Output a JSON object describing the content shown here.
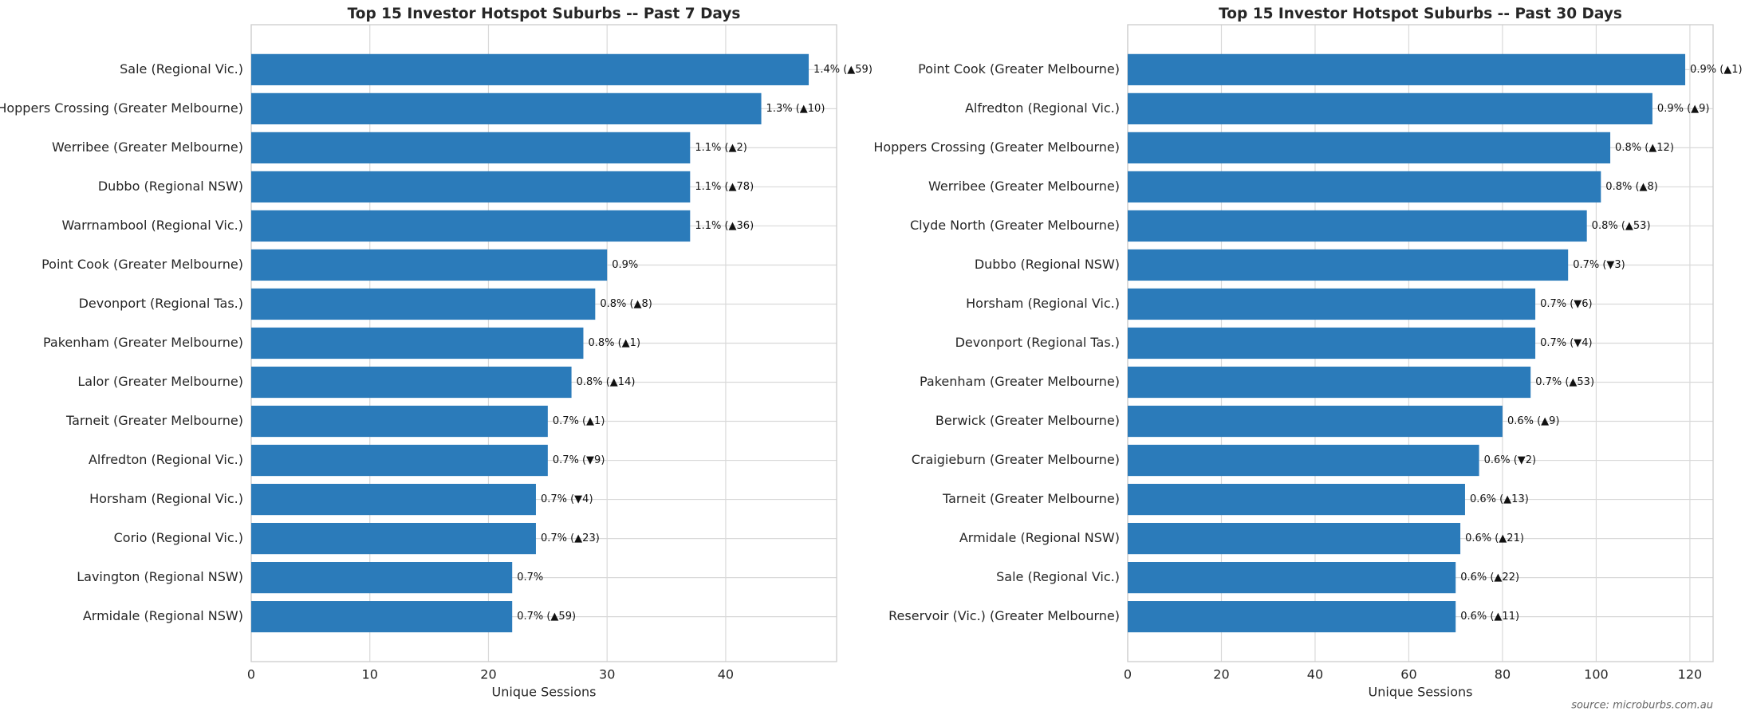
{
  "chart_data": [
    {
      "type": "bar",
      "orientation": "horizontal",
      "title": "Top 15 Investor Hotspot Suburbs -- Past 7 Days",
      "xlabel": "Unique Sessions",
      "categories": [
        "Sale (Regional Vic.)",
        "Hoppers Crossing (Greater Melbourne)",
        "Werribee (Greater Melbourne)",
        "Dubbo (Regional NSW)",
        "Warrnambool (Regional Vic.)",
        "Point Cook (Greater Melbourne)",
        "Devonport (Regional Tas.)",
        "Pakenham (Greater Melbourne)",
        "Lalor (Greater Melbourne)",
        "Tarneit (Greater Melbourne)",
        "Alfredton (Regional Vic.)",
        "Horsham (Regional Vic.)",
        "Corio (Regional Vic.)",
        "Lavington (Regional NSW)",
        "Armidale (Regional NSW)"
      ],
      "values": [
        47,
        43,
        37,
        37,
        37,
        30,
        29,
        28,
        27,
        25,
        25,
        24,
        24,
        22,
        22
      ],
      "bar_labels": [
        "1.4% (▲59)",
        "1.3% (▲10)",
        "1.1% (▲2)",
        "1.1% (▲78)",
        "1.1% (▲36)",
        "0.9%",
        "0.8% (▲8)",
        "0.8% (▲1)",
        "0.8% (▲14)",
        "0.7% (▲1)",
        "0.7% (▼9)",
        "0.7% (▼4)",
        "0.7% (▲23)",
        "0.7%",
        "0.7% (▲59)"
      ],
      "color": "#2b7bba",
      "xlim": [
        0,
        49.35
      ],
      "xticks": [
        0,
        10,
        20,
        30,
        40
      ],
      "grid": true
    },
    {
      "type": "bar",
      "orientation": "horizontal",
      "title": "Top 15 Investor Hotspot Suburbs -- Past 30 Days",
      "xlabel": "Unique Sessions",
      "categories": [
        "Point Cook (Greater Melbourne)",
        "Alfredton (Regional Vic.)",
        "Hoppers Crossing (Greater Melbourne)",
        "Werribee (Greater Melbourne)",
        "Clyde North (Greater Melbourne)",
        "Dubbo (Regional NSW)",
        "Horsham (Regional Vic.)",
        "Devonport (Regional Tas.)",
        "Pakenham (Greater Melbourne)",
        "Berwick (Greater Melbourne)",
        "Craigieburn (Greater Melbourne)",
        "Tarneit (Greater Melbourne)",
        "Armidale (Regional NSW)",
        "Sale (Regional Vic.)",
        "Reservoir (Vic.) (Greater Melbourne)"
      ],
      "values": [
        119,
        112,
        103,
        101,
        98,
        94,
        87,
        87,
        86,
        80,
        75,
        72,
        71,
        70,
        70
      ],
      "bar_labels": [
        "0.9% (▲1)",
        "0.9% (▲9)",
        "0.8% (▲12)",
        "0.8% (▲8)",
        "0.8% (▲53)",
        "0.7% (▼3)",
        "0.7% (▼6)",
        "0.7% (▼4)",
        "0.7% (▲53)",
        "0.6% (▲9)",
        "0.6% (▼2)",
        "0.6% (▲13)",
        "0.6% (▲21)",
        "0.6% (▲22)",
        "0.6% (▲11)"
      ],
      "color": "#2b7bba",
      "xlim": [
        0,
        124.95
      ],
      "xticks": [
        0,
        20,
        40,
        60,
        80,
        100,
        120
      ],
      "grid": true
    }
  ],
  "source": "source: microburbs.com.au"
}
